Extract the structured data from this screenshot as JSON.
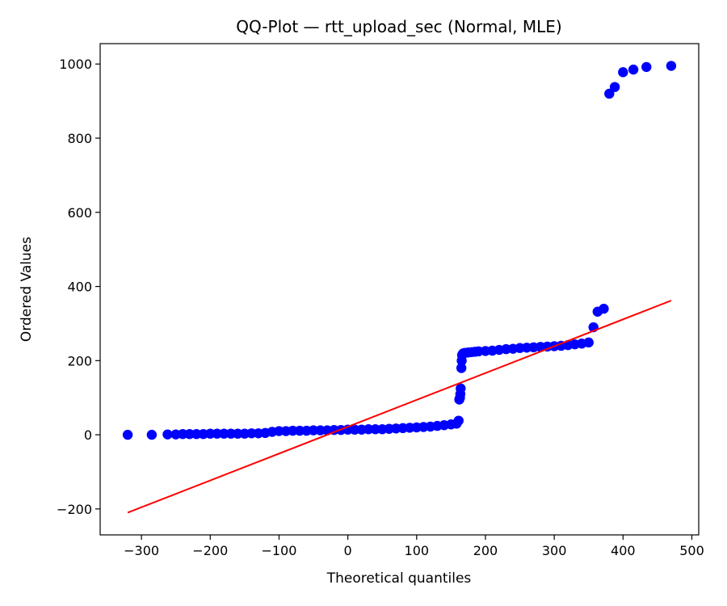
{
  "chart_data": {
    "type": "scatter",
    "title": "QQ-Plot — rtt_upload_sec (Normal, MLE)",
    "xlabel": "Theoretical quantiles",
    "ylabel": "Ordered Values",
    "xlim": [
      -360,
      510
    ],
    "ylim": [
      -270,
      1055
    ],
    "xticks": [
      -300,
      -200,
      -100,
      0,
      100,
      200,
      300,
      400,
      500
    ],
    "yticks": [
      -200,
      0,
      200,
      400,
      600,
      800,
      1000
    ],
    "xtick_labels": [
      "−300",
      "−200",
      "−100",
      "0",
      "100",
      "200",
      "300",
      "400",
      "500"
    ],
    "ytick_labels": [
      "−200",
      "0",
      "200",
      "400",
      "600",
      "800",
      "1000"
    ],
    "grid": false,
    "point_color": "#0000ff",
    "line_color": "#ff0000",
    "series": [
      {
        "kind": "points",
        "x": [
          -320,
          -285,
          -262,
          -250,
          -240,
          -230,
          -220,
          -210,
          -200,
          -190,
          -180,
          -170,
          -160,
          -150,
          -140,
          -130,
          -120,
          -110,
          -100,
          -90,
          -80,
          -70,
          -60,
          -50,
          -40,
          -30,
          -20,
          -10,
          0,
          10,
          20,
          30,
          40,
          50,
          60,
          70,
          80,
          90,
          100,
          110,
          120,
          130,
          140,
          150,
          158,
          161,
          162,
          163,
          163.5,
          164,
          165,
          165.5,
          166,
          167,
          168,
          170,
          175,
          180,
          185,
          190,
          200,
          210,
          220,
          230,
          240,
          250,
          260,
          270,
          280,
          290,
          300,
          310,
          320,
          330,
          340,
          350,
          357,
          363,
          372,
          380,
          388,
          400,
          415,
          434,
          470
        ],
        "y": [
          0,
          0,
          1,
          1,
          2,
          2,
          2,
          2,
          3,
          3,
          3,
          3,
          3,
          3,
          4,
          4,
          5,
          8,
          10,
          10,
          11,
          11,
          11,
          12,
          12,
          12,
          13,
          13,
          14,
          14,
          14,
          15,
          15,
          15,
          16,
          17,
          18,
          19,
          20,
          21,
          22,
          24,
          26,
          28,
          30,
          38,
          95,
          100,
          110,
          125,
          180,
          200,
          215,
          218,
          220,
          221,
          222,
          223,
          224,
          225,
          226,
          227,
          229,
          231,
          232,
          234,
          235,
          236,
          237,
          238,
          239,
          240,
          242,
          244,
          246,
          249,
          290,
          332,
          340,
          920,
          938,
          978,
          985,
          992,
          995
        ]
      },
      {
        "kind": "line",
        "x": [
          -320,
          470
        ],
        "y": [
          -210,
          362
        ]
      }
    ]
  }
}
